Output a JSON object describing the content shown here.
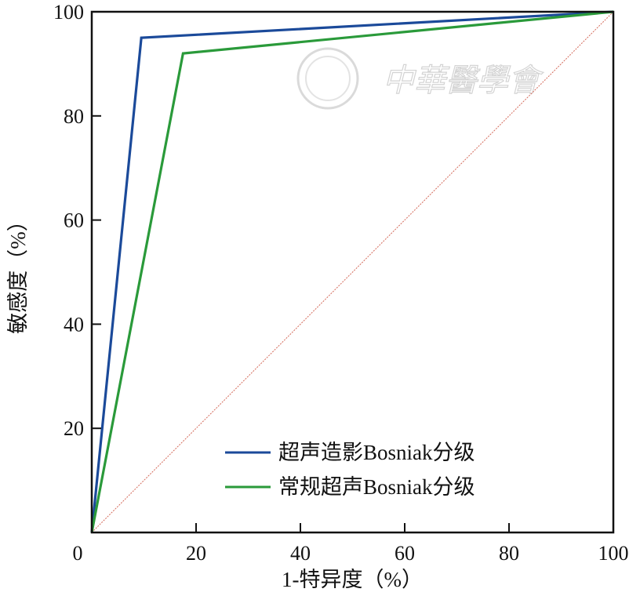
{
  "chart_data": {
    "type": "line",
    "xlabel": "1-特异度（%）",
    "ylabel": "敏感度（%）",
    "xlim": [
      0,
      100
    ],
    "ylim": [
      0,
      100
    ],
    "x_ticks": [
      0,
      20,
      40,
      60,
      80,
      100
    ],
    "y_ticks": [
      20,
      40,
      60,
      80,
      100
    ],
    "grid": false,
    "legend_position": "bottom-right",
    "series": [
      {
        "name": "超声造影Bosniak分级",
        "color": "#1b4a9a",
        "x": [
          0,
          9.5,
          100
        ],
        "y": [
          0,
          95,
          100
        ]
      },
      {
        "name": "常规超声Bosniak分级",
        "color": "#2a9a3a",
        "x": [
          0,
          17.5,
          100
        ],
        "y": [
          0,
          92,
          100
        ]
      }
    ],
    "reference_line": {
      "x": [
        0,
        100
      ],
      "y": [
        0,
        100
      ],
      "color": "#d46a5a"
    }
  },
  "watermark": {
    "text": "中華醫學會"
  }
}
